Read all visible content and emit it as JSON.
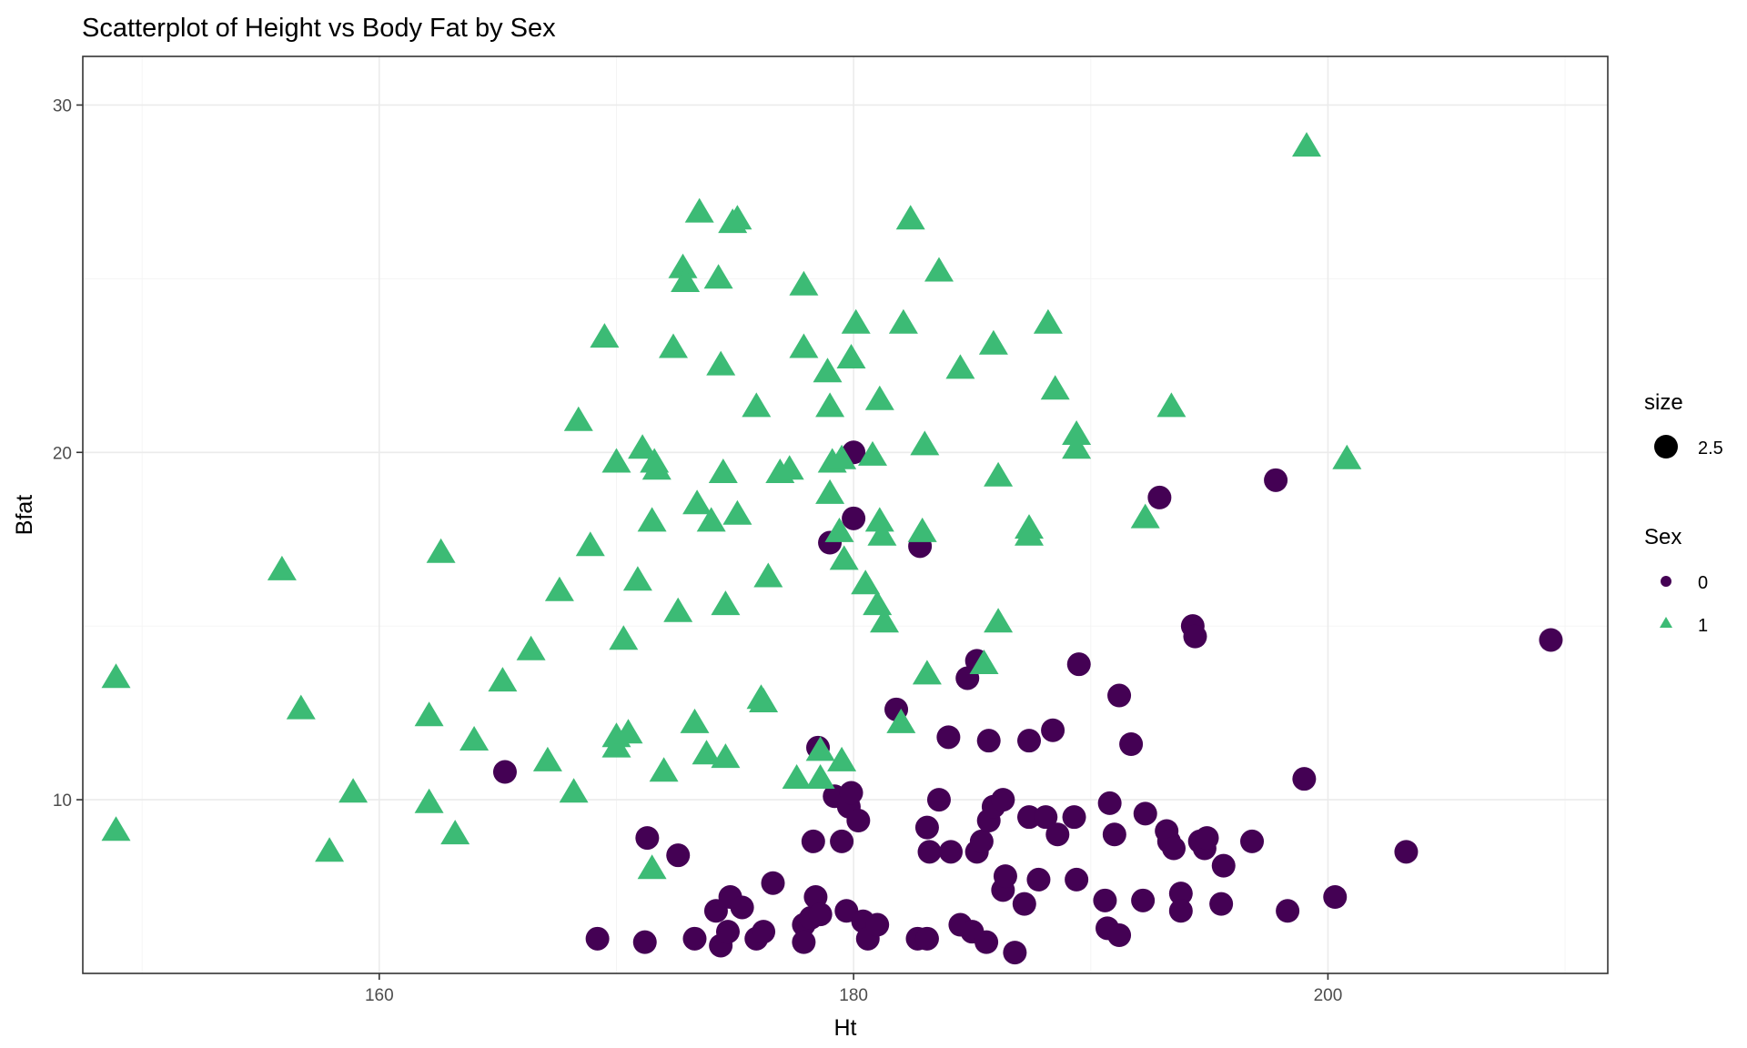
{
  "chart_data": {
    "type": "scatter",
    "title": "Scatterplot of Height vs Body Fat by Sex",
    "xlabel": "Ht",
    "ylabel": "Bfat",
    "xlim": [
      147.5,
      211.8
    ],
    "ylim": [
      5.0,
      31.4
    ],
    "x_ticks": [
      160,
      180,
      200
    ],
    "y_ticks": [
      10,
      20,
      30
    ],
    "grid": true,
    "legend_position": "right",
    "legend": {
      "size_title": "size",
      "size_label": "2.5",
      "color_title": "Sex"
    },
    "series": [
      {
        "name": "0",
        "shape": "circle",
        "color": "#440154",
        "points": [
          [
            165.3,
            10.8
          ],
          [
            169.2,
            6.0
          ],
          [
            171.2,
            5.9
          ],
          [
            171.3,
            8.9
          ],
          [
            172.6,
            8.4
          ],
          [
            173.3,
            6.0
          ],
          [
            174.2,
            6.8
          ],
          [
            174.4,
            5.8
          ],
          [
            174.7,
            6.2
          ],
          [
            174.8,
            7.2
          ],
          [
            175.3,
            6.9
          ],
          [
            175.9,
            6.0
          ],
          [
            176.2,
            6.2
          ],
          [
            176.6,
            7.6
          ],
          [
            177.9,
            6.4
          ],
          [
            177.9,
            5.9
          ],
          [
            178.2,
            6.6
          ],
          [
            178.3,
            8.8
          ],
          [
            178.4,
            7.2
          ],
          [
            178.5,
            11.5
          ],
          [
            178.6,
            6.7
          ],
          [
            179.0,
            17.4
          ],
          [
            179.2,
            10.1
          ],
          [
            179.5,
            8.8
          ],
          [
            179.7,
            6.8
          ],
          [
            179.8,
            9.8
          ],
          [
            179.9,
            10.2
          ],
          [
            180.0,
            20.0
          ],
          [
            180.0,
            18.1
          ],
          [
            180.2,
            9.4
          ],
          [
            180.4,
            6.5
          ],
          [
            180.6,
            6.0
          ],
          [
            181.0,
            6.4
          ],
          [
            181.8,
            12.6
          ],
          [
            182.7,
            6.0
          ],
          [
            182.8,
            17.3
          ],
          [
            183.1,
            9.2
          ],
          [
            183.1,
            6.0
          ],
          [
            183.2,
            8.5
          ],
          [
            183.6,
            10.0
          ],
          [
            184.0,
            11.8
          ],
          [
            184.1,
            8.5
          ],
          [
            184.5,
            6.4
          ],
          [
            184.8,
            13.5
          ],
          [
            185.0,
            6.2
          ],
          [
            185.2,
            14.0
          ],
          [
            185.2,
            8.5
          ],
          [
            185.4,
            8.8
          ],
          [
            185.6,
            5.9
          ],
          [
            185.7,
            9.4
          ],
          [
            185.7,
            11.7
          ],
          [
            185.9,
            9.8
          ],
          [
            186.3,
            10.0
          ],
          [
            186.3,
            7.4
          ],
          [
            186.4,
            7.8
          ],
          [
            186.8,
            5.6
          ],
          [
            187.2,
            7.0
          ],
          [
            187.4,
            9.5
          ],
          [
            187.4,
            11.7
          ],
          [
            187.8,
            7.7
          ],
          [
            188.1,
            9.5
          ],
          [
            188.4,
            12.0
          ],
          [
            188.6,
            9.0
          ],
          [
            189.3,
            9.5
          ],
          [
            189.4,
            7.7
          ],
          [
            189.5,
            13.9
          ],
          [
            190.6,
            7.1
          ],
          [
            190.7,
            6.3
          ],
          [
            190.8,
            9.9
          ],
          [
            191.0,
            9.0
          ],
          [
            191.2,
            13.0
          ],
          [
            191.2,
            6.1
          ],
          [
            191.7,
            11.6
          ],
          [
            192.2,
            7.1
          ],
          [
            192.3,
            9.6
          ],
          [
            192.9,
            18.7
          ],
          [
            193.2,
            9.1
          ],
          [
            193.3,
            8.8
          ],
          [
            193.5,
            8.6
          ],
          [
            193.8,
            7.3
          ],
          [
            193.8,
            6.8
          ],
          [
            194.3,
            15.0
          ],
          [
            194.4,
            14.7
          ],
          [
            194.6,
            8.8
          ],
          [
            194.8,
            8.6
          ],
          [
            194.9,
            8.9
          ],
          [
            195.5,
            7.0
          ],
          [
            195.6,
            8.1
          ],
          [
            196.8,
            8.8
          ],
          [
            197.8,
            19.2
          ],
          [
            198.3,
            6.8
          ],
          [
            199.0,
            10.6
          ],
          [
            200.3,
            7.2
          ],
          [
            203.3,
            8.5
          ],
          [
            209.4,
            14.6
          ]
        ]
      },
      {
        "name": "1",
        "shape": "triangle",
        "color": "#3cbb75",
        "points": [
          [
            148.9,
            13.5
          ],
          [
            148.9,
            9.1
          ],
          [
            155.9,
            16.6
          ],
          [
            156.7,
            12.6
          ],
          [
            157.9,
            8.5
          ],
          [
            158.9,
            10.2
          ],
          [
            162.1,
            12.4
          ],
          [
            162.1,
            9.9
          ],
          [
            162.6,
            17.1
          ],
          [
            163.2,
            9.0
          ],
          [
            164.0,
            11.7
          ],
          [
            165.2,
            13.4
          ],
          [
            166.4,
            14.3
          ],
          [
            167.1,
            11.1
          ],
          [
            167.6,
            16.0
          ],
          [
            168.2,
            10.2
          ],
          [
            168.4,
            20.9
          ],
          [
            168.9,
            17.3
          ],
          [
            169.5,
            23.3
          ],
          [
            170.0,
            11.8
          ],
          [
            170.0,
            11.5
          ],
          [
            170.0,
            19.7
          ],
          [
            170.3,
            14.6
          ],
          [
            170.5,
            11.9
          ],
          [
            170.9,
            16.3
          ],
          [
            171.1,
            20.1
          ],
          [
            171.5,
            18.0
          ],
          [
            171.5,
            8.0
          ],
          [
            171.6,
            19.7
          ],
          [
            171.7,
            19.5
          ],
          [
            172.0,
            10.8
          ],
          [
            172.4,
            23.0
          ],
          [
            172.6,
            15.4
          ],
          [
            172.8,
            25.3
          ],
          [
            172.9,
            24.9
          ],
          [
            173.3,
            12.2
          ],
          [
            173.4,
            18.5
          ],
          [
            173.5,
            26.9
          ],
          [
            173.8,
            11.3
          ],
          [
            174.0,
            18.0
          ],
          [
            174.3,
            25.0
          ],
          [
            174.4,
            22.5
          ],
          [
            174.5,
            19.4
          ],
          [
            174.6,
            15.6
          ],
          [
            174.6,
            11.2
          ],
          [
            174.9,
            26.6
          ],
          [
            175.1,
            26.7
          ],
          [
            175.1,
            18.2
          ],
          [
            175.9,
            21.3
          ],
          [
            176.1,
            12.9
          ],
          [
            176.2,
            12.8
          ],
          [
            176.4,
            16.4
          ],
          [
            176.9,
            19.4
          ],
          [
            177.3,
            19.5
          ],
          [
            177.6,
            10.6
          ],
          [
            177.9,
            24.8
          ],
          [
            177.9,
            23.0
          ],
          [
            178.6,
            11.4
          ],
          [
            178.6,
            10.6
          ],
          [
            178.9,
            22.3
          ],
          [
            179.0,
            21.3
          ],
          [
            179.0,
            18.8
          ],
          [
            179.1,
            19.7
          ],
          [
            179.4,
            17.7
          ],
          [
            179.5,
            19.8
          ],
          [
            179.5,
            11.1
          ],
          [
            179.6,
            16.9
          ],
          [
            179.9,
            22.7
          ],
          [
            180.1,
            23.7
          ],
          [
            180.5,
            16.2
          ],
          [
            180.8,
            19.9
          ],
          [
            181.0,
            15.6
          ],
          [
            181.1,
            18.0
          ],
          [
            181.1,
            21.5
          ],
          [
            181.2,
            17.6
          ],
          [
            181.3,
            15.1
          ],
          [
            182.0,
            12.2
          ],
          [
            182.1,
            23.7
          ],
          [
            182.4,
            26.7
          ],
          [
            182.9,
            17.7
          ],
          [
            183.0,
            20.2
          ],
          [
            183.1,
            13.6
          ],
          [
            183.6,
            25.2
          ],
          [
            184.5,
            22.4
          ],
          [
            185.5,
            13.9
          ],
          [
            185.9,
            23.1
          ],
          [
            186.1,
            15.1
          ],
          [
            186.1,
            19.3
          ],
          [
            187.4,
            17.8
          ],
          [
            187.4,
            17.6
          ],
          [
            188.2,
            23.7
          ],
          [
            188.5,
            21.8
          ],
          [
            189.4,
            20.5
          ],
          [
            189.4,
            20.1
          ],
          [
            192.3,
            18.1
          ],
          [
            193.4,
            21.3
          ],
          [
            199.1,
            28.8
          ],
          [
            200.8,
            19.8
          ]
        ]
      }
    ]
  }
}
